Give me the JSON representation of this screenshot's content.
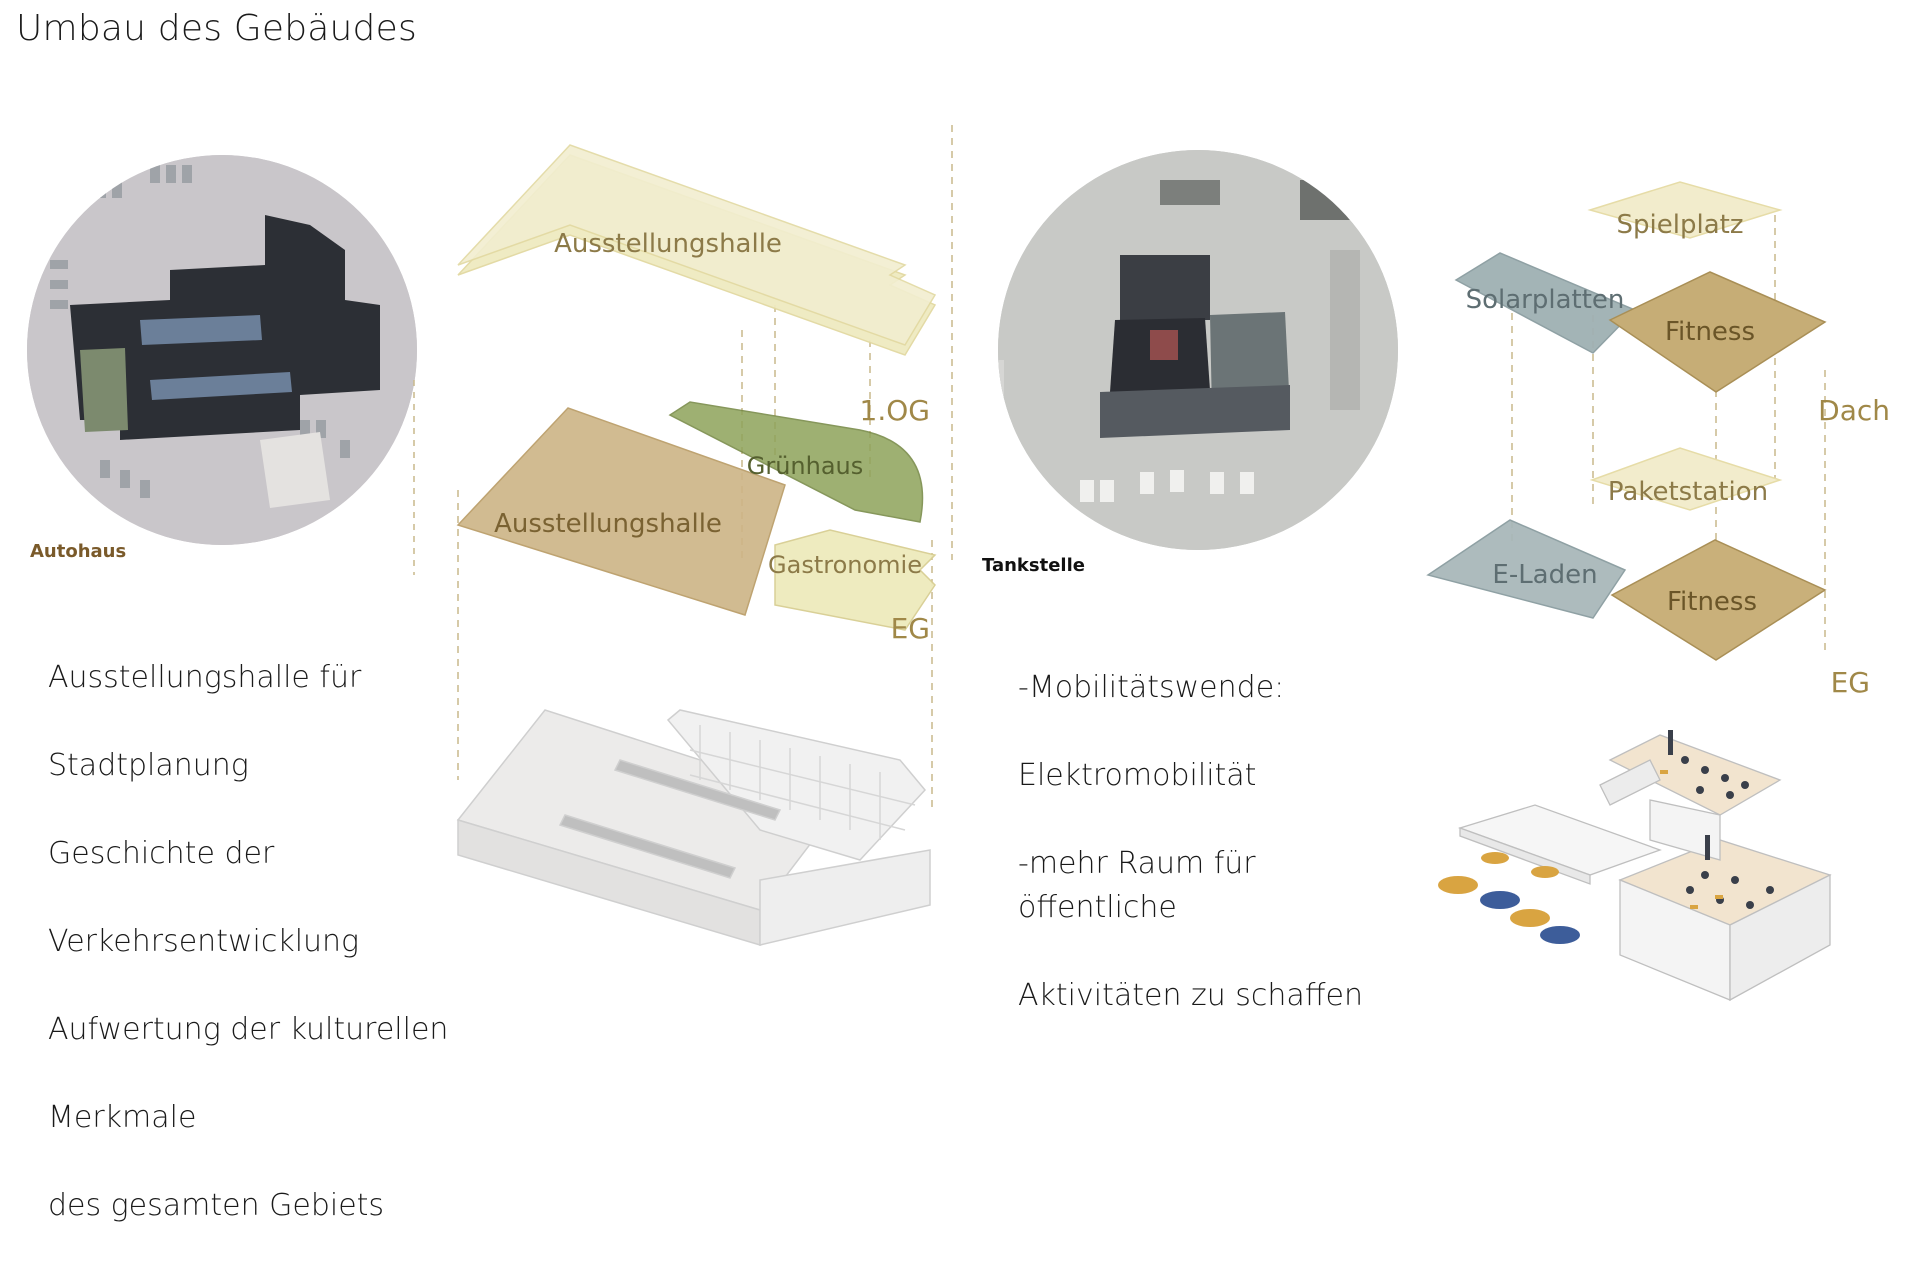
{
  "title": "Umbau des Gebäudes",
  "colors": {
    "pale_yellow": "#efeac0",
    "tan": "#c8ae7a",
    "green": "#8a9a55",
    "slate": "#9fb0b3",
    "gold": "#b9a06a",
    "level_label": "#a08848",
    "caption_brown": "#7a5a2a"
  },
  "site_left": {
    "caption": "Autohaus",
    "description_lines": [
      "Ausstellungshalle für",
      "Stadtplanung",
      "Geschichte der",
      "Verkehrsentwicklung",
      "Aufwertung der kulturellen",
      "Merkmale",
      "des gesamten Gebiets"
    ]
  },
  "diagram_left": {
    "upper_plane_label": "Ausstellungshalle",
    "upper_level": "1.OG",
    "lower_plane_label": "Ausstellungshalle",
    "green_label": "Grünhaus",
    "gastro_label": "Gastronomie",
    "lower_level": "EG"
  },
  "site_right": {
    "caption": "Tankstelle",
    "description_lines": [
      "-Mobilitätswende:",
      "Elektromobilität",
      "-mehr Raum für öffentliche",
      "Aktivitäten zu schaffen"
    ]
  },
  "diagram_right": {
    "roof_labels": {
      "playground": "Spielplatz",
      "solar": "Solarplatten",
      "fitness": "Fitness"
    },
    "roof_level": "Dach",
    "ground_labels": {
      "parcel": "Paketstation",
      "shop": "E-Laden",
      "fitness": "Fitness"
    },
    "ground_level": "EG"
  }
}
